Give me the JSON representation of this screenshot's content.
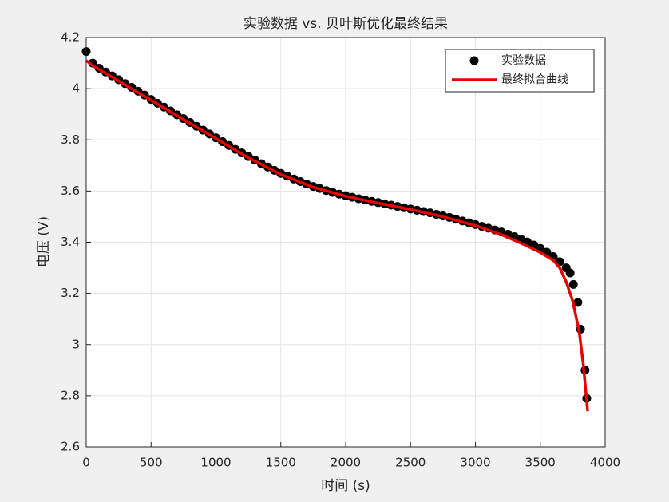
{
  "chart_data": {
    "type": "scatter-line",
    "title": "实验数据 vs. 贝叶斯优化最终结果",
    "x_label": "时间 (s)",
    "y_label": "电压 (V)",
    "xlim": [
      0,
      4000
    ],
    "xticks": [
      0,
      500,
      1000,
      1500,
      2000,
      2500,
      3000,
      3500,
      4000
    ],
    "ylim": [
      2.6,
      4.2
    ],
    "yticks": [
      2.6,
      2.8,
      3,
      3.2,
      3.4,
      3.6,
      3.8,
      4,
      4.2
    ],
    "grid": true,
    "legend": "northeast",
    "series": [
      {
        "name": "实验数据",
        "kind": "scatter",
        "color": "#000000",
        "x": [
          0,
          50,
          100,
          150,
          200,
          250,
          300,
          350,
          400,
          450,
          500,
          550,
          600,
          650,
          700,
          750,
          800,
          850,
          900,
          950,
          1000,
          1050,
          1100,
          1150,
          1200,
          1250,
          1300,
          1350,
          1400,
          1450,
          1500,
          1550,
          1600,
          1650,
          1700,
          1750,
          1800,
          1850,
          1900,
          1950,
          2000,
          2050,
          2100,
          2150,
          2200,
          2250,
          2300,
          2350,
          2400,
          2450,
          2500,
          2550,
          2600,
          2650,
          2700,
          2750,
          2800,
          2850,
          2900,
          2950,
          3000,
          3050,
          3100,
          3150,
          3200,
          3250,
          3300,
          3350,
          3400,
          3450,
          3500,
          3550,
          3600,
          3650,
          3700,
          3730,
          3755,
          3790,
          3810,
          3845,
          3858
        ],
        "values": [
          4.145,
          4.1,
          4.08,
          4.065,
          4.05,
          4.035,
          4.02,
          4.005,
          3.99,
          3.975,
          3.958,
          3.943,
          3.928,
          3.913,
          3.898,
          3.883,
          3.868,
          3.853,
          3.838,
          3.823,
          3.808,
          3.793,
          3.778,
          3.763,
          3.749,
          3.735,
          3.721,
          3.707,
          3.694,
          3.681,
          3.669,
          3.658,
          3.647,
          3.637,
          3.627,
          3.618,
          3.61,
          3.602,
          3.595,
          3.588,
          3.582,
          3.576,
          3.57,
          3.565,
          3.56,
          3.555,
          3.55,
          3.545,
          3.54,
          3.535,
          3.53,
          3.525,
          3.52,
          3.515,
          3.509,
          3.503,
          3.497,
          3.49,
          3.483,
          3.476,
          3.469,
          3.462,
          3.455,
          3.448,
          3.44,
          3.431,
          3.422,
          3.412,
          3.401,
          3.389,
          3.376,
          3.361,
          3.344,
          3.324,
          3.3,
          3.28,
          3.235,
          3.165,
          3.06,
          2.9,
          2.79
        ]
      },
      {
        "name": "最终拟合曲线",
        "kind": "line",
        "color": "#e60000",
        "x": [
          0,
          50,
          100,
          200,
          300,
          500,
          750,
          1000,
          1250,
          1500,
          1750,
          2000,
          2250,
          2500,
          2750,
          3000,
          3200,
          3400,
          3500,
          3600,
          3650,
          3700,
          3750,
          3800,
          3830,
          3865
        ],
        "values": [
          4.11,
          4.09,
          4.075,
          4.045,
          4.015,
          3.955,
          3.88,
          3.805,
          3.73,
          3.665,
          3.615,
          3.58,
          3.553,
          3.528,
          3.5,
          3.465,
          3.43,
          3.385,
          3.36,
          3.33,
          3.3,
          3.245,
          3.17,
          3.05,
          2.93,
          2.74
        ]
      }
    ]
  }
}
